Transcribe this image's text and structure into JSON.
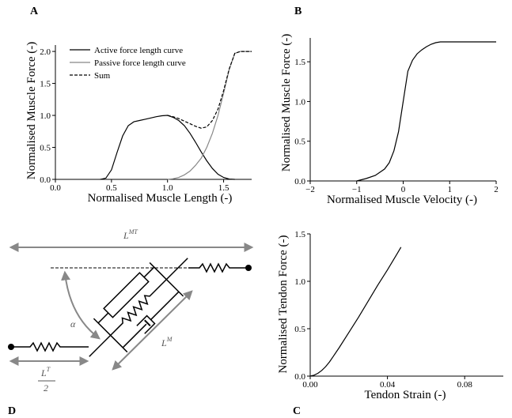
{
  "chart_data": [
    {
      "panel": "A",
      "type": "line",
      "xlabel": "Normalised Muscle Length (-)",
      "ylabel": "Normalised Muscle Force (-)",
      "xlim": [
        0.0,
        1.75
      ],
      "ylim": [
        0.0,
        2.1
      ],
      "xticks": [
        "0.0",
        "0.5",
        "1.0",
        "1.5"
      ],
      "yticks": [
        "0.0",
        "0.5",
        "1.0",
        "1.5",
        "2.0"
      ],
      "legend_position": "top-left",
      "series": [
        {
          "name": "Active force length curve",
          "color": "#000000",
          "dash": "solid",
          "x": [
            0.4,
            0.45,
            0.5,
            0.55,
            0.6,
            0.65,
            0.7,
            0.75,
            0.8,
            0.85,
            0.9,
            0.95,
            1.0,
            1.05,
            1.1,
            1.15,
            1.2,
            1.25,
            1.3,
            1.35,
            1.4,
            1.45,
            1.5,
            1.55,
            1.6
          ],
          "y": [
            0.0,
            0.02,
            0.15,
            0.42,
            0.68,
            0.84,
            0.9,
            0.92,
            0.94,
            0.96,
            0.98,
            0.995,
            1.0,
            0.97,
            0.92,
            0.84,
            0.72,
            0.58,
            0.43,
            0.29,
            0.17,
            0.08,
            0.03,
            0.005,
            0.0
          ]
        },
        {
          "name": "Passive force length curve",
          "color": "#888888",
          "dash": "solid",
          "x": [
            1.0,
            1.05,
            1.1,
            1.15,
            1.2,
            1.25,
            1.3,
            1.35,
            1.4,
            1.45,
            1.5,
            1.55,
            1.6,
            1.65,
            1.7,
            1.75
          ],
          "y": [
            0.0,
            0.01,
            0.03,
            0.07,
            0.13,
            0.22,
            0.33,
            0.5,
            0.72,
            1.0,
            1.35,
            1.72,
            1.97,
            2.0,
            2.0,
            2.0
          ]
        },
        {
          "name": "Sum",
          "color": "#000000",
          "dash": "dashed",
          "x": [
            1.0,
            1.05,
            1.1,
            1.15,
            1.2,
            1.25,
            1.3,
            1.35,
            1.4,
            1.45,
            1.5,
            1.55,
            1.6,
            1.65,
            1.7,
            1.75
          ],
          "y": [
            1.0,
            0.98,
            0.95,
            0.91,
            0.87,
            0.83,
            0.8,
            0.82,
            0.92,
            1.1,
            1.39,
            1.73,
            1.97,
            2.0,
            2.0,
            2.0
          ]
        }
      ]
    },
    {
      "panel": "B",
      "type": "line",
      "xlabel": "Normalised Muscle Velocity (-)",
      "ylabel": "Normalised Muscle Force (-)",
      "xlim": [
        -2,
        2
      ],
      "ylim": [
        0.0,
        1.8
      ],
      "xticks": [
        "−2",
        "−1",
        "0",
        "1",
        "2"
      ],
      "yticks": [
        "0.0",
        "0.5",
        "1.0",
        "1.5"
      ],
      "series": [
        {
          "color": "#000000",
          "dash": "solid",
          "x": [
            -1.0,
            -0.8,
            -0.6,
            -0.4,
            -0.3,
            -0.2,
            -0.1,
            0.0,
            0.1,
            0.2,
            0.3,
            0.4,
            0.5,
            0.6,
            0.7,
            0.8,
            1.0,
            1.5,
            2.0
          ],
          "y": [
            0.0,
            0.03,
            0.07,
            0.15,
            0.23,
            0.38,
            0.62,
            1.0,
            1.38,
            1.52,
            1.6,
            1.65,
            1.69,
            1.72,
            1.74,
            1.75,
            1.75,
            1.75,
            1.75
          ]
        }
      ]
    },
    {
      "panel": "C",
      "type": "line",
      "xlabel": "Tendon Strain (-)",
      "ylabel": "Normalised Tendon Force (-)",
      "xlim": [
        0.0,
        0.1
      ],
      "ylim": [
        0.0,
        1.5
      ],
      "xticks": [
        "0.00",
        "0.04",
        "0.08"
      ],
      "yticks": [
        "0.0",
        "0.5",
        "1.0",
        "1.5"
      ],
      "series": [
        {
          "color": "#000000",
          "dash": "solid",
          "x": [
            0.0,
            0.002,
            0.004,
            0.006,
            0.008,
            0.01,
            0.012,
            0.015,
            0.02,
            0.025,
            0.03,
            0.035,
            0.04,
            0.045,
            0.047
          ],
          "y": [
            0.0,
            0.01,
            0.03,
            0.06,
            0.1,
            0.15,
            0.21,
            0.3,
            0.46,
            0.62,
            0.79,
            0.96,
            1.12,
            1.29,
            1.36
          ]
        }
      ]
    }
  ],
  "diagram": {
    "panel": "D",
    "label_LMT_base": "L",
    "label_LMT_sup": "MT",
    "label_alpha": "α",
    "label_LM_base": "L",
    "label_LM_sup": "M",
    "label_LT_base": "L",
    "label_LT_sup": "T",
    "label_LT_denominator": "2"
  },
  "colors": {
    "axis": "#000000",
    "passive": "#888888",
    "diagram_arrow": "#888888"
  }
}
